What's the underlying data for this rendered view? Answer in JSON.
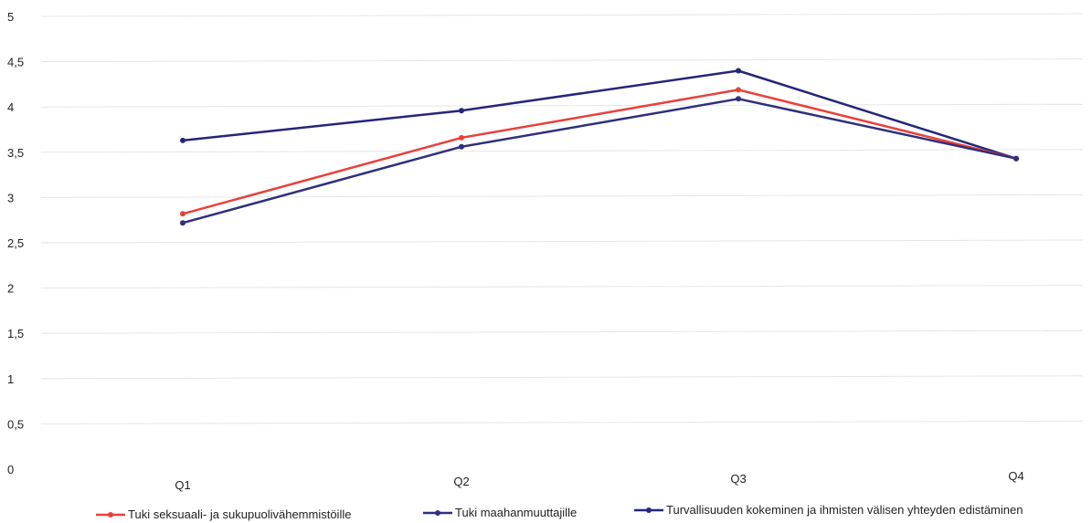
{
  "chart_data": {
    "type": "line",
    "categories": [
      "Q1",
      "Q2",
      "Q3",
      "Q4"
    ],
    "ylim": [
      0,
      5
    ],
    "yticks": [
      "0",
      "0,5",
      "1",
      "1,5",
      "2",
      "2,5",
      "3",
      "3,5",
      "4",
      "4,5",
      "5"
    ],
    "ytick_values": [
      0,
      0.5,
      1,
      1.5,
      2,
      2.5,
      3,
      3.5,
      4,
      4.5,
      5
    ],
    "grid": true,
    "legend_position": "bottom",
    "series": [
      {
        "name": "Tuki seksuaali- ja sukupuolivähemmistöille",
        "color": "#e8413c",
        "values": [
          2.82,
          3.66,
          4.19,
          3.43
        ]
      },
      {
        "name": "Tuki maahanmuuttajille",
        "color": "#2e2f7c",
        "values": [
          2.72,
          3.56,
          4.09,
          3.43
        ]
      },
      {
        "name": "Turvallisuuden kokeminen ja ihmisten välisen yhteyden edistäminen",
        "color": "#24267a",
        "values": [
          3.63,
          3.96,
          4.4,
          3.43
        ]
      }
    ]
  }
}
